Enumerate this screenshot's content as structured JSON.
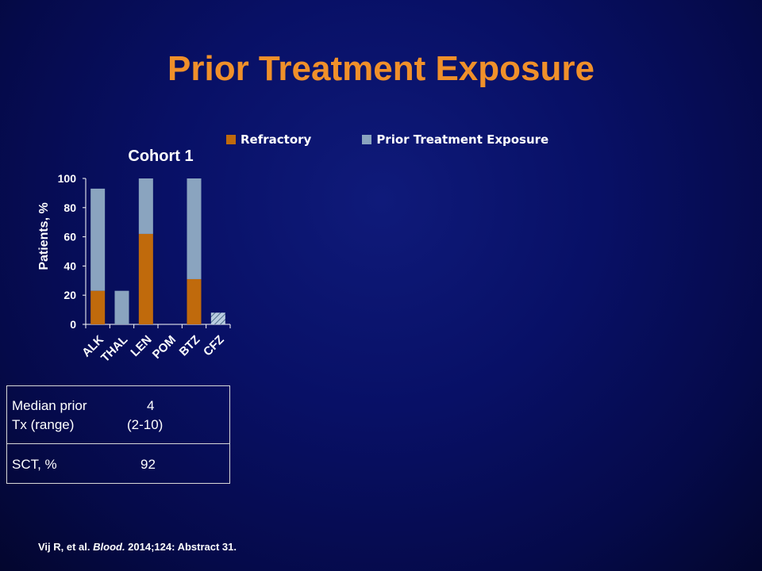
{
  "slide": {
    "title": "Prior Treatment Exposure"
  },
  "legend": {
    "items": [
      {
        "label": "Refractory",
        "color": "#c06a0c"
      },
      {
        "label": "Prior Treatment Exposure",
        "color": "#8aa4bf"
      }
    ]
  },
  "chart_data": {
    "type": "bar",
    "title": "Cohort 1",
    "ylabel": "Patients, %",
    "xlabel": "",
    "ylim": [
      0,
      100
    ],
    "yticks": [
      0,
      20,
      40,
      60,
      80,
      100
    ],
    "categories": [
      "ALK",
      "THAL",
      "LEN",
      "POM",
      "BTZ",
      "CFZ"
    ],
    "stacked": true,
    "series": [
      {
        "name": "Refractory",
        "color": "#c06a0c",
        "values": [
          23,
          0,
          62,
          0,
          31,
          0
        ]
      },
      {
        "name": "Prior Treatment Exposure",
        "color": "#8aa4bf",
        "values": [
          70,
          23,
          38,
          0,
          69,
          8
        ]
      }
    ],
    "hatched": [
      false,
      false,
      false,
      false,
      false,
      true
    ],
    "grid": false
  },
  "stats_table": {
    "median_label_line1": "Median prior",
    "median_label_line2": "Tx (range)",
    "median_value": "4",
    "median_range": "(2-10)",
    "sct_label": "SCT, %",
    "sct_value": "92"
  },
  "citation": {
    "authors": "Vij R, et al. ",
    "journal": "Blood.",
    "details": " 2014;124: Abstract 31."
  }
}
